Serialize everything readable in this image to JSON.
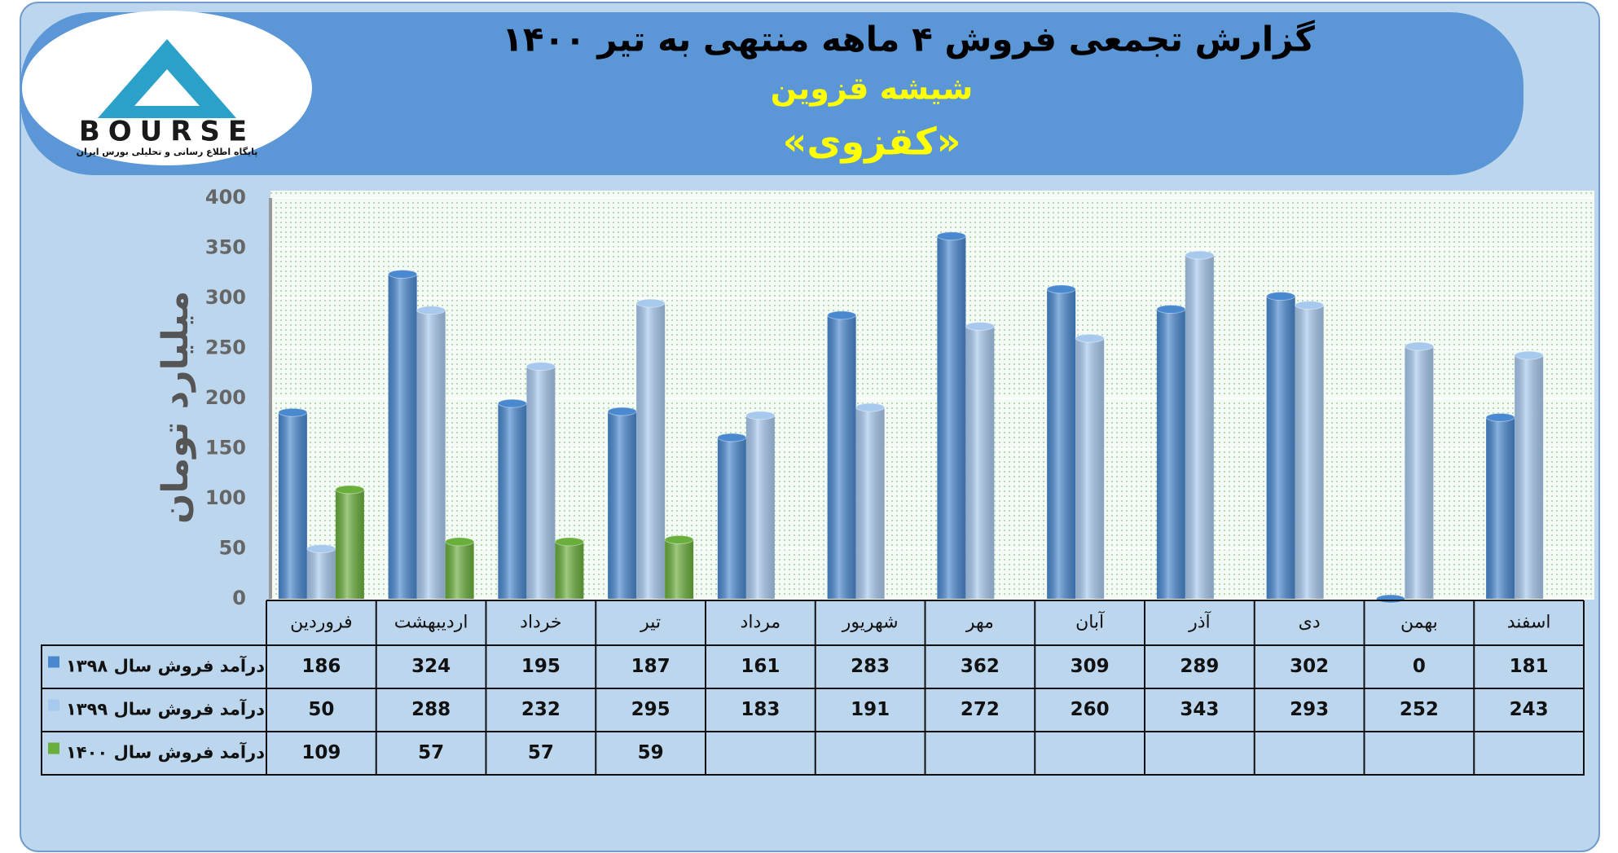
{
  "logo": {
    "name": "BOURSE",
    "tagline": "پایگاه اطلاع رسانی و تحلیلی بورس ایران"
  },
  "chart_data": {
    "type": "bar",
    "title": "گزارش تجمعی فروش ۴ ماهه منتهی به تیر ۱۴۰۰",
    "subtitle": "شیشه قزوین",
    "symbol": "«کقزوی»",
    "y_label": "میلیارد تومان",
    "categories": [
      "فروردین",
      "اردیبهشت",
      "خرداد",
      "تیر",
      "مرداد",
      "شهریور",
      "مهر",
      "آبان",
      "آذر",
      "دی",
      "بهمن",
      "اسفند"
    ],
    "series": [
      {
        "name": "درآمد فروش سال ۱۳۹۸",
        "color": "#4a89d0",
        "values": [
          186,
          324,
          195,
          187,
          161,
          283,
          362,
          309,
          289,
          302,
          0,
          181
        ]
      },
      {
        "name": "درآمد فروش سال ۱۳۹۹",
        "color": "#a8c9ee",
        "values": [
          50,
          288,
          232,
          295,
          183,
          191,
          272,
          260,
          343,
          293,
          252,
          243
        ]
      },
      {
        "name": "درآمد فروش سال ۱۴۰۰",
        "color": "#6aae3c",
        "values": [
          109,
          57,
          57,
          59,
          null,
          null,
          null,
          null,
          null,
          null,
          null,
          null
        ]
      }
    ],
    "ylim": [
      0,
      400
    ],
    "yticks": [
      0,
      50,
      100,
      150,
      200,
      250,
      300,
      350,
      400
    ],
    "grid": true,
    "data_table": true
  }
}
